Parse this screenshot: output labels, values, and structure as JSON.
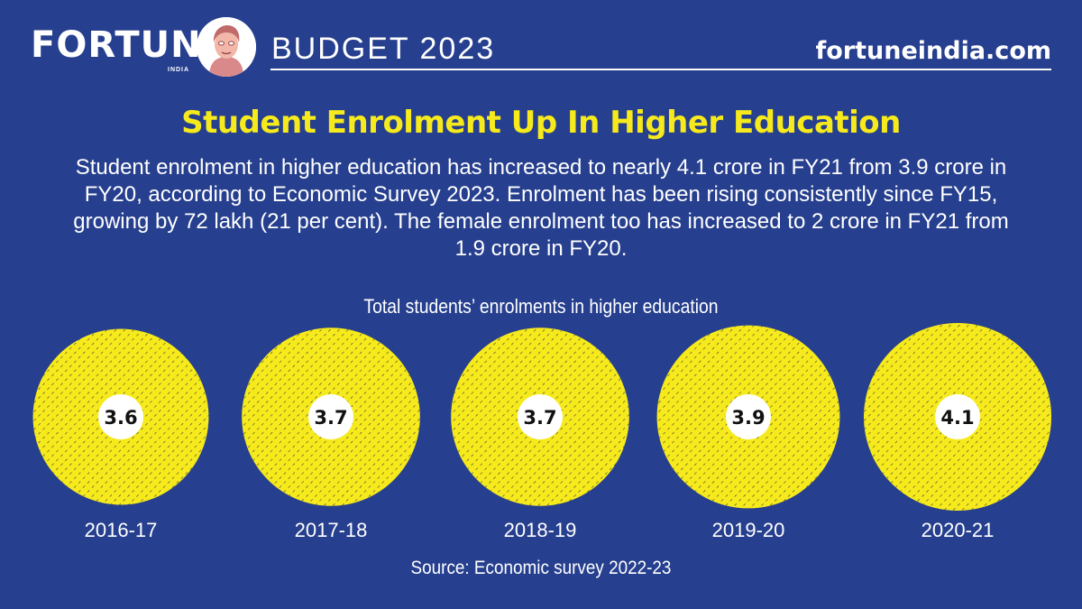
{
  "header": {
    "brand": "FORTUNE",
    "brand_sub": "INDIA",
    "section": "BUDGET 2023",
    "site": "fortuneindia.com"
  },
  "headline": "Student Enrolment Up In Higher Education",
  "description": "Student enrolment in higher education has increased to nearly 4.1 crore in FY21 from 3.9 crore in FY20, according to Economic Survey 2023. Enrolment has been rising consistently since FY15, growing by  72 lakh (21 per cent). The female enrolment too has increased to 2 crore in FY21 from 1.9 crore in FY20.",
  "source": "Source:  Economic survey 2022-23",
  "colors": {
    "background": "#263f8e",
    "accent": "#f6ea1c",
    "text": "#ffffff"
  },
  "chart_data": {
    "type": "bubble",
    "title": "Total students’ enrolments in higher education",
    "categories": [
      "2016-17",
      "2017-18",
      "2018-19",
      "2019-20",
      "2020-21"
    ],
    "values": [
      3.6,
      3.7,
      3.7,
      3.9,
      4.1
    ],
    "value_labels": [
      "3.6",
      "3.7",
      "3.7",
      "3.9",
      "4.1"
    ],
    "unit": "crore",
    "legend": "none",
    "grid": false
  }
}
